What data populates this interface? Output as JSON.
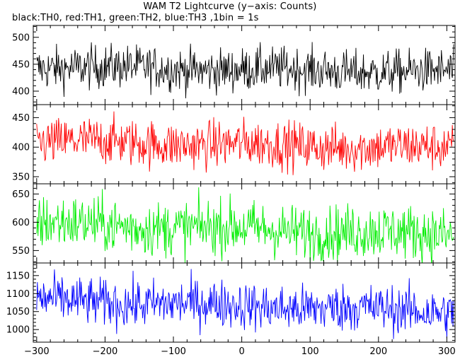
{
  "title": "WAM T2 Lightcurve (y−axis: Counts)",
  "subtitle": "black:TH0, red:TH1, green:TH2, blue:TH3 ,1bin = 1s",
  "chart_data": {
    "type": "line",
    "xlim": [
      -305,
      312
    ],
    "xticks": [
      -300,
      -200,
      -100,
      0,
      100,
      200,
      300
    ],
    "xtick_labels": [
      "−300",
      "−200",
      "−100",
      "0",
      "100",
      "200",
      "300"
    ],
    "panels": [
      {
        "name": "TH0",
        "color": "#000000",
        "ylim": [
          375,
          522
        ],
        "yticks": [
          400,
          450,
          500
        ],
        "ytick_labels": [
          "400",
          "450",
          "500"
        ],
        "mean_start": 445,
        "mean_end": 435,
        "noise": 20
      },
      {
        "name": "TH1",
        "color": "#ff0000",
        "ylim": [
          338,
          472
        ],
        "yticks": [
          350,
          400,
          450
        ],
        "ytick_labels": [
          "350",
          "400",
          "450"
        ],
        "mean_start": 410,
        "mean_end": 398,
        "noise": 20
      },
      {
        "name": "TH2",
        "color": "#00ee00",
        "ylim": [
          528,
          668
        ],
        "yticks": [
          550,
          600,
          650
        ],
        "ytick_labels": [
          "550",
          "600",
          "650"
        ],
        "mean_start": 598,
        "mean_end": 578,
        "noise": 24
      },
      {
        "name": "TH3",
        "color": "#0000ff",
        "ylim": [
          965,
          1185
        ],
        "yticks": [
          1000,
          1050,
          1100,
          1150
        ],
        "ytick_labels": [
          "1000",
          "1050",
          "1100",
          "1150"
        ],
        "mean_start": 1082,
        "mean_end": 1050,
        "noise": 33
      }
    ]
  }
}
